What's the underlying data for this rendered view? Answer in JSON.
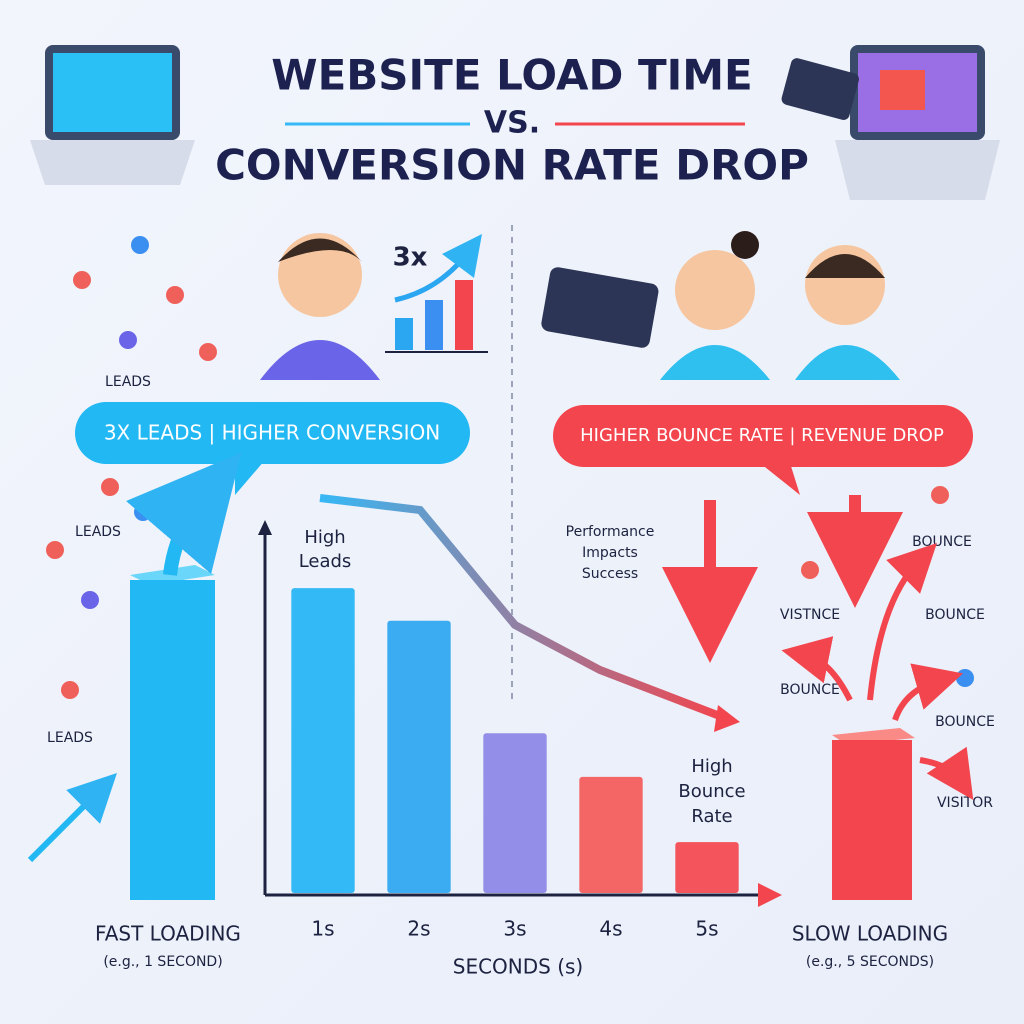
{
  "header": {
    "line1": "WEBSITE LOAD TIME",
    "vs": "VS.",
    "line2": "CONVERSION RATE DROP"
  },
  "left": {
    "badge": "3x",
    "banner": "3X LEADS | HIGHER CONVERSION",
    "leads": [
      "LEADS",
      "LEADS",
      "LEADS"
    ],
    "caption": "FAST LOADING",
    "caption_note": "(e.g., 1 SECOND)"
  },
  "right": {
    "banner": "HIGHER BOUNCE RATE | REVENUE DROP",
    "bounce": [
      "BOUNCE",
      "BOUNCE",
      "BOUNCE",
      "BOUNCE"
    ],
    "vistnce": "VISTNCE",
    "visitor": "VISITOR",
    "caption": "SLOW LOADING",
    "caption_note": "(e.g., 5 SECONDS)"
  },
  "chart_data": {
    "type": "bar",
    "categories": [
      "1s",
      "2s",
      "3s",
      "4s",
      "5s"
    ],
    "values": [
      84,
      75,
      44,
      32,
      14
    ],
    "colors": [
      "#23b4f4",
      "#2ba6f1",
      "#8b86e6",
      "#f35a58",
      "#f4474d"
    ],
    "ylim": [
      0,
      100
    ],
    "x_label": "SECONDS (s)",
    "annotations": {
      "high_leads": [
        "High",
        "Leads"
      ],
      "performance": [
        "Performance",
        "Impacts",
        "Success"
      ],
      "high_bounce": [
        "High",
        "Bounce",
        "Rate"
      ]
    }
  }
}
